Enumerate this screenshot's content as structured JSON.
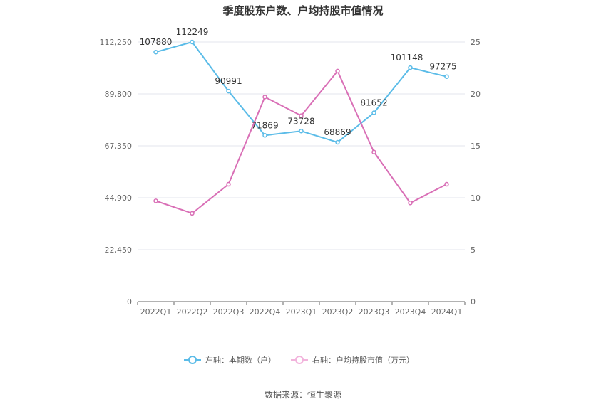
{
  "chart_data": {
    "type": "line",
    "title": "季度股东户数、户均持股市值情况",
    "categories": [
      "2022Q1",
      "2022Q2",
      "2022Q3",
      "2022Q4",
      "2023Q1",
      "2023Q2",
      "2023Q3",
      "2023Q4",
      "2024Q1"
    ],
    "y_left": {
      "ticks": [
        "0",
        "22,450",
        "44,900",
        "67,350",
        "89,800",
        "112,250"
      ],
      "ylim": [
        0,
        112250
      ]
    },
    "y_right": {
      "ticks": [
        "0",
        "5",
        "10",
        "15",
        "20",
        "25"
      ],
      "ylim": [
        0,
        25
      ]
    },
    "series": [
      {
        "name": "左轴：本期数（户）",
        "axis": "left",
        "color": "#5bbce8",
        "values": [
          107880,
          112249,
          90991,
          71869,
          73728,
          68869,
          81652,
          101148,
          97275
        ],
        "labels": [
          "107880",
          "112249",
          "90991",
          "71869",
          "73728",
          "68869",
          "81652",
          "101148",
          "97275"
        ]
      },
      {
        "name": "右轴：户均持股市值（万元）",
        "axis": "right",
        "color": "#d96fb6",
        "values": [
          9.7,
          8.5,
          11.3,
          19.7,
          17.9,
          22.2,
          14.4,
          9.5,
          11.3
        ]
      }
    ],
    "grid": true,
    "legend": "bottom-center"
  },
  "source": "数据来源：恒生聚源"
}
